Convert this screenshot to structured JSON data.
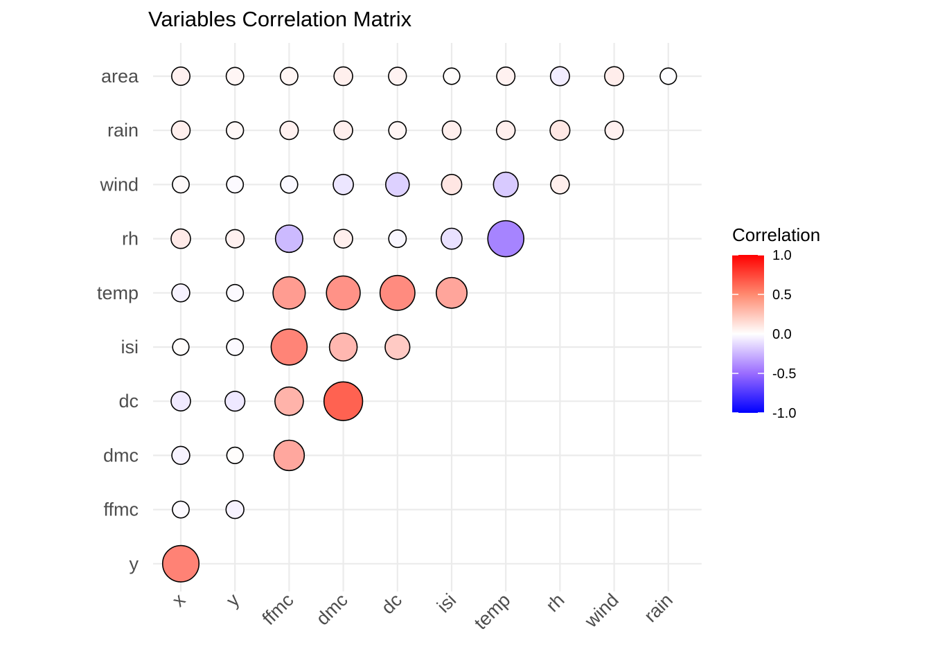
{
  "chart_data": {
    "type": "bubble-correlation-matrix",
    "title": "Variables Correlation Matrix",
    "x_categories": [
      "x",
      "y",
      "ffmc",
      "dmc",
      "dc",
      "isi",
      "temp",
      "rh",
      "wind",
      "rain"
    ],
    "y_categories": [
      "y",
      "ffmc",
      "dmc",
      "dc",
      "isi",
      "temp",
      "rh",
      "wind",
      "rain",
      "area"
    ],
    "cells": [
      {
        "x": "x",
        "y": "y",
        "value": 0.54
      },
      {
        "x": "x",
        "y": "ffmc",
        "value": -0.02
      },
      {
        "x": "x",
        "y": "dmc",
        "value": -0.05
      },
      {
        "x": "x",
        "y": "dc",
        "value": -0.09
      },
      {
        "x": "x",
        "y": "isi",
        "value": 0.01
      },
      {
        "x": "x",
        "y": "temp",
        "value": -0.05
      },
      {
        "x": "x",
        "y": "rh",
        "value": 0.09
      },
      {
        "x": "x",
        "y": "wind",
        "value": 0.02
      },
      {
        "x": "x",
        "y": "rain",
        "value": 0.07
      },
      {
        "x": "x",
        "y": "area",
        "value": 0.06
      },
      {
        "x": "y",
        "y": "ffmc",
        "value": -0.05
      },
      {
        "x": "y",
        "y": "dmc",
        "value": 0.01
      },
      {
        "x": "y",
        "y": "dc",
        "value": -0.1
      },
      {
        "x": "y",
        "y": "isi",
        "value": -0.02
      },
      {
        "x": "y",
        "y": "temp",
        "value": -0.02
      },
      {
        "x": "y",
        "y": "rh",
        "value": 0.06
      },
      {
        "x": "y",
        "y": "wind",
        "value": -0.02
      },
      {
        "x": "y",
        "y": "rain",
        "value": 0.03
      },
      {
        "x": "y",
        "y": "area",
        "value": 0.04
      },
      {
        "x": "ffmc",
        "y": "dmc",
        "value": 0.38
      },
      {
        "x": "ffmc",
        "y": "dc",
        "value": 0.33
      },
      {
        "x": "ffmc",
        "y": "isi",
        "value": 0.53
      },
      {
        "x": "ffmc",
        "y": "temp",
        "value": 0.43
      },
      {
        "x": "ffmc",
        "y": "rh",
        "value": -0.3
      },
      {
        "x": "ffmc",
        "y": "wind",
        "value": -0.03
      },
      {
        "x": "ffmc",
        "y": "rain",
        "value": 0.06
      },
      {
        "x": "ffmc",
        "y": "area",
        "value": 0.04
      },
      {
        "x": "dmc",
        "y": "dc",
        "value": 0.68
      },
      {
        "x": "dmc",
        "y": "isi",
        "value": 0.31
      },
      {
        "x": "dmc",
        "y": "temp",
        "value": 0.47
      },
      {
        "x": "dmc",
        "y": "rh",
        "value": 0.07
      },
      {
        "x": "dmc",
        "y": "wind",
        "value": -0.11
      },
      {
        "x": "dmc",
        "y": "rain",
        "value": 0.07
      },
      {
        "x": "dmc",
        "y": "area",
        "value": 0.07
      },
      {
        "x": "dc",
        "y": "isi",
        "value": 0.23
      },
      {
        "x": "dc",
        "y": "temp",
        "value": 0.5
      },
      {
        "x": "dc",
        "y": "rh",
        "value": -0.04
      },
      {
        "x": "dc",
        "y": "wind",
        "value": -0.2
      },
      {
        "x": "dc",
        "y": "rain",
        "value": 0.04
      },
      {
        "x": "dc",
        "y": "area",
        "value": 0.05
      },
      {
        "x": "isi",
        "y": "temp",
        "value": 0.39
      },
      {
        "x": "isi",
        "y": "rh",
        "value": -0.13
      },
      {
        "x": "isi",
        "y": "wind",
        "value": 0.11
      },
      {
        "x": "isi",
        "y": "rain",
        "value": 0.07
      },
      {
        "x": "isi",
        "y": "area",
        "value": 0.01
      },
      {
        "x": "temp",
        "y": "rh",
        "value": -0.53
      },
      {
        "x": "temp",
        "y": "wind",
        "value": -0.23
      },
      {
        "x": "temp",
        "y": "rain",
        "value": 0.07
      },
      {
        "x": "temp",
        "y": "area",
        "value": 0.06
      },
      {
        "x": "rh",
        "y": "wind",
        "value": 0.07
      },
      {
        "x": "rh",
        "y": "rain",
        "value": 0.1
      },
      {
        "x": "rh",
        "y": "area",
        "value": -0.08
      },
      {
        "x": "wind",
        "y": "rain",
        "value": 0.06
      },
      {
        "x": "wind",
        "y": "area",
        "value": 0.08
      },
      {
        "x": "rain",
        "y": "area",
        "value": -0.01
      }
    ],
    "legend": {
      "title": "Correlation",
      "ticks": [
        1.0,
        0.5,
        0.0,
        -0.5,
        -1.0
      ],
      "tick_labels": [
        "1.0",
        "0.5",
        "0.0",
        "-0.5",
        "-1.0"
      ],
      "placement": "right",
      "colors": {
        "low": "#0000ff",
        "mid": "#ffffff",
        "high": "#ff0000"
      }
    },
    "grid": true
  }
}
